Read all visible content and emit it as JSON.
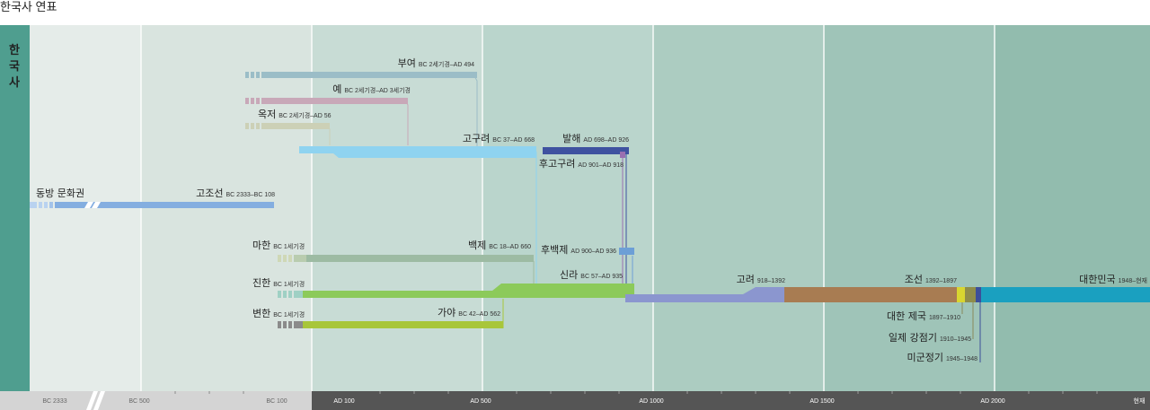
{
  "page_title": "한국사 연표",
  "side_label": [
    "한",
    "국",
    "사"
  ],
  "colors": {
    "side": "#4f9e8f",
    "era_bands": [
      "#e5ece9",
      "#d9e4df",
      "#c8dcd5",
      "#bad5cc",
      "#acccc1",
      "#9fc4b8",
      "#92bcae"
    ],
    "axis_bc": "#d4d4d4",
    "axis_ad": "#555555"
  },
  "timeline": {
    "ticks": [
      "BC 2333",
      "BC 500",
      "BC 100",
      "AD 100",
      "AD 500",
      "AD 1000",
      "AD 1500",
      "AD 2000",
      "현재"
    ]
  },
  "entities": [
    {
      "name": "동방 문화권",
      "range": "",
      "color": "#84aee0"
    },
    {
      "name": "고조선",
      "range": "BC 2333–BC 108",
      "color": "#84aee0"
    },
    {
      "name": "부여",
      "range": "BC 2세기경–AD 494",
      "color": "#9bbdc7"
    },
    {
      "name": "예",
      "range": "BC 2세기경–AD 3세기경",
      "color": "#c8a8b8"
    },
    {
      "name": "옥저",
      "range": "BC 2세기경–AD 56",
      "color": "#ccd0b6"
    },
    {
      "name": "고구려",
      "range": "BC 37–AD 668",
      "color": "#8fd3f0"
    },
    {
      "name": "발해",
      "range": "AD 698–AD 926",
      "color": "#3f52a0"
    },
    {
      "name": "후고구려",
      "range": "AD 901–AD 918",
      "color": "#9a6fb0"
    },
    {
      "name": "마한",
      "range": "BC 1세기경",
      "color": "#9dbba3"
    },
    {
      "name": "백제",
      "range": "BC 18–AD 660",
      "color": "#9dbba3"
    },
    {
      "name": "후백제",
      "range": "AD 900–AD 936",
      "color": "#6d9fd6"
    },
    {
      "name": "진한",
      "range": "BC 1세기경",
      "color": "#8cca5a"
    },
    {
      "name": "신라",
      "range": "BC 57–AD 935",
      "color": "#8cca5a"
    },
    {
      "name": "변한",
      "range": "BC 1세기경",
      "color": "#8b8b8b"
    },
    {
      "name": "가야",
      "range": "BC 42–AD 562",
      "color": "#a8c63a"
    },
    {
      "name": "고려",
      "range": "918–1392",
      "color": "#8b96cf"
    },
    {
      "name": "조선",
      "range": "1392–1897",
      "color": "#a87c52"
    },
    {
      "name": "대한 제국",
      "range": "1897–1910",
      "color": "#d8d630"
    },
    {
      "name": "일제 강점기",
      "range": "1910–1945",
      "color": "#8f8d4a"
    },
    {
      "name": "미군정기",
      "range": "1945–1948",
      "color": "#3c4f9a"
    },
    {
      "name": "대한민국",
      "range": "1948–현재",
      "color": "#1aa0c0"
    }
  ]
}
